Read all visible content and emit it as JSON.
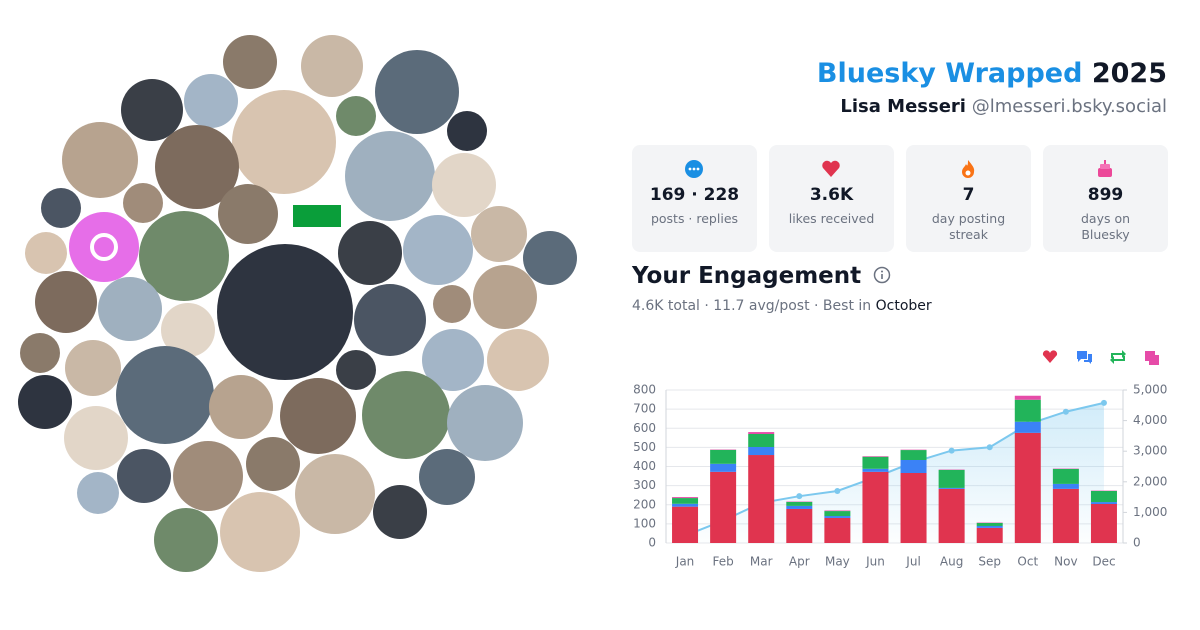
{
  "header": {
    "title": "Bluesky Wrapped",
    "year": "2025",
    "name": "Lisa Messeri",
    "handle": "@lmesseri.bsky.social"
  },
  "stats": [
    {
      "value": "169 · 228",
      "label": "posts · replies"
    },
    {
      "value": "3.6K",
      "label": "likes received"
    },
    {
      "value": "7",
      "label": "day posting streak"
    },
    {
      "value": "899",
      "label": "days on Bluesky"
    }
  ],
  "engagement": {
    "title": "Your Engagement",
    "summary": "4.6K total · 11.7 avg/post · Best in",
    "best_month": "October"
  },
  "chart_data": {
    "type": "bar",
    "stacked": true,
    "categories": [
      "Jan",
      "Feb",
      "Mar",
      "Apr",
      "May",
      "Jun",
      "Jul",
      "Aug",
      "Sep",
      "Oct",
      "Nov",
      "Dec"
    ],
    "series": [
      {
        "color": "#e0344f",
        "values": [
          190,
          372,
          460,
          178,
          131,
          372,
          366,
          283,
          79,
          576,
          283,
          204
        ]
      },
      {
        "color": "#3b82f6",
        "values": [
          15,
          42,
          42,
          16,
          10,
          16,
          68,
          5,
          10,
          58,
          26,
          10
        ]
      },
      {
        "color": "#22b45a",
        "values": [
          30,
          73,
          68,
          21,
          26,
          63,
          52,
          94,
          16,
          115,
          78,
          58
        ]
      },
      {
        "color": "#e64ba8",
        "values": [
          5,
          2,
          10,
          2,
          3,
          3,
          2,
          2,
          2,
          21,
          2,
          2
        ]
      },
      {
        "type": "line",
        "axis": "y2",
        "color": "#7cc8ee",
        "values": [
          240,
          730,
          1310,
          1530,
          1700,
          2150,
          2640,
          3020,
          3130,
          3880,
          4290,
          4580
        ]
      }
    ],
    "ylim": [
      0,
      800
    ],
    "yticks": [
      0,
      100,
      200,
      300,
      400,
      500,
      600,
      700,
      800
    ],
    "y2lim": [
      0,
      5000
    ],
    "y2ticks": [
      0,
      {
        "value": 1000,
        "label": "1,000"
      },
      {
        "value": 2000,
        "label": "2,000"
      },
      {
        "value": 3000,
        "label": "3,000"
      },
      {
        "value": 4000,
        "label": "4,000"
      },
      {
        "value": 5000,
        "label": "5,000"
      }
    ],
    "grid": true
  }
}
